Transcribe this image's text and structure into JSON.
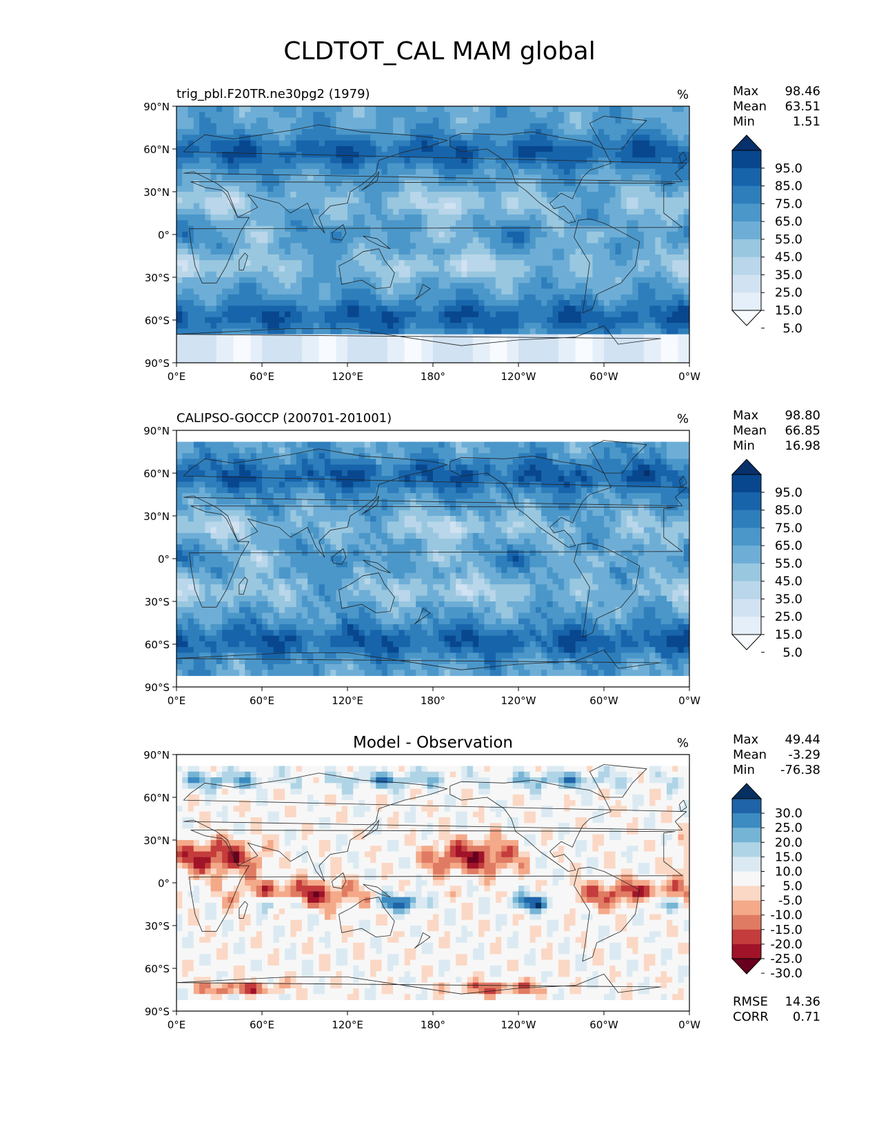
{
  "figure": {
    "title": "CLDTOT_CAL MAM global"
  },
  "axes": {
    "lat_ticks": [
      "90°N",
      "60°N",
      "30°N",
      "0°",
      "30°S",
      "60°S",
      "90°S"
    ],
    "lon_ticks": [
      "0°E",
      "60°E",
      "120°E",
      "180°",
      "120°W",
      "60°W",
      "0°W"
    ]
  },
  "colors": {
    "blues": [
      "#f7fbff",
      "#e5eff9",
      "#d1e2f2",
      "#b9d6ea",
      "#99c7e0",
      "#6eaed6",
      "#4b97c9",
      "#2e7ebc",
      "#1764ab",
      "#08478e",
      "#08306b"
    ],
    "diff": [
      "#67001f",
      "#a01328",
      "#c43c3c",
      "#e07b63",
      "#f4a989",
      "#fbd8c5",
      "#f7f7f7",
      "#dbeaf2",
      "#afd4e6",
      "#76b4d5",
      "#3c8bc1",
      "#1f63a8",
      "#053061"
    ],
    "coast": "#222222"
  },
  "panels": [
    {
      "id": "test",
      "title": "trig_pbl.F20TR.ne30pg2 (1979)",
      "title_center": false,
      "units": "%",
      "stats": [
        {
          "label": "Max",
          "value": "98.46"
        },
        {
          "label": "Mean",
          "value": "63.51"
        },
        {
          "label": "Min",
          "value": "1.51"
        }
      ],
      "colorbar_ticks": [
        "95.0",
        "85.0",
        "75.0",
        "65.0",
        "55.0",
        "45.0",
        "35.0",
        "25.0",
        "15.0",
        "5.0"
      ],
      "colormap": "blues",
      "data_lat_range": [
        -90,
        90
      ]
    },
    {
      "id": "ref",
      "title": "CALIPSO-GOCCP (200701-201001)",
      "title_center": false,
      "units": "%",
      "stats": [
        {
          "label": "Max",
          "value": "98.80"
        },
        {
          "label": "Mean",
          "value": "66.85"
        },
        {
          "label": "Min",
          "value": "16.98"
        }
      ],
      "colorbar_ticks": [
        "95.0",
        "85.0",
        "75.0",
        "65.0",
        "55.0",
        "45.0",
        "35.0",
        "25.0",
        "15.0",
        "5.0"
      ],
      "colormap": "blues",
      "data_lat_range": [
        -82,
        82
      ]
    },
    {
      "id": "diff",
      "title": "Model - Observation",
      "title_center": true,
      "units": "%",
      "stats": [
        {
          "label": "Max",
          "value": "49.44"
        },
        {
          "label": "Mean",
          "value": "-3.29"
        },
        {
          "label": "Min",
          "value": "-76.38"
        }
      ],
      "colorbar_ticks": [
        "30.0",
        "25.0",
        "20.0",
        "15.0",
        "10.0",
        "5.0",
        "-5.0",
        "-10.0",
        "-15.0",
        "-20.0",
        "-25.0",
        "-30.0"
      ],
      "colormap": "diff",
      "data_lat_range": [
        -82,
        82
      ],
      "metrics": [
        {
          "label": "RMSE",
          "value": "14.36"
        },
        {
          "label": "CORR",
          "value": "0.71"
        }
      ]
    }
  ]
}
